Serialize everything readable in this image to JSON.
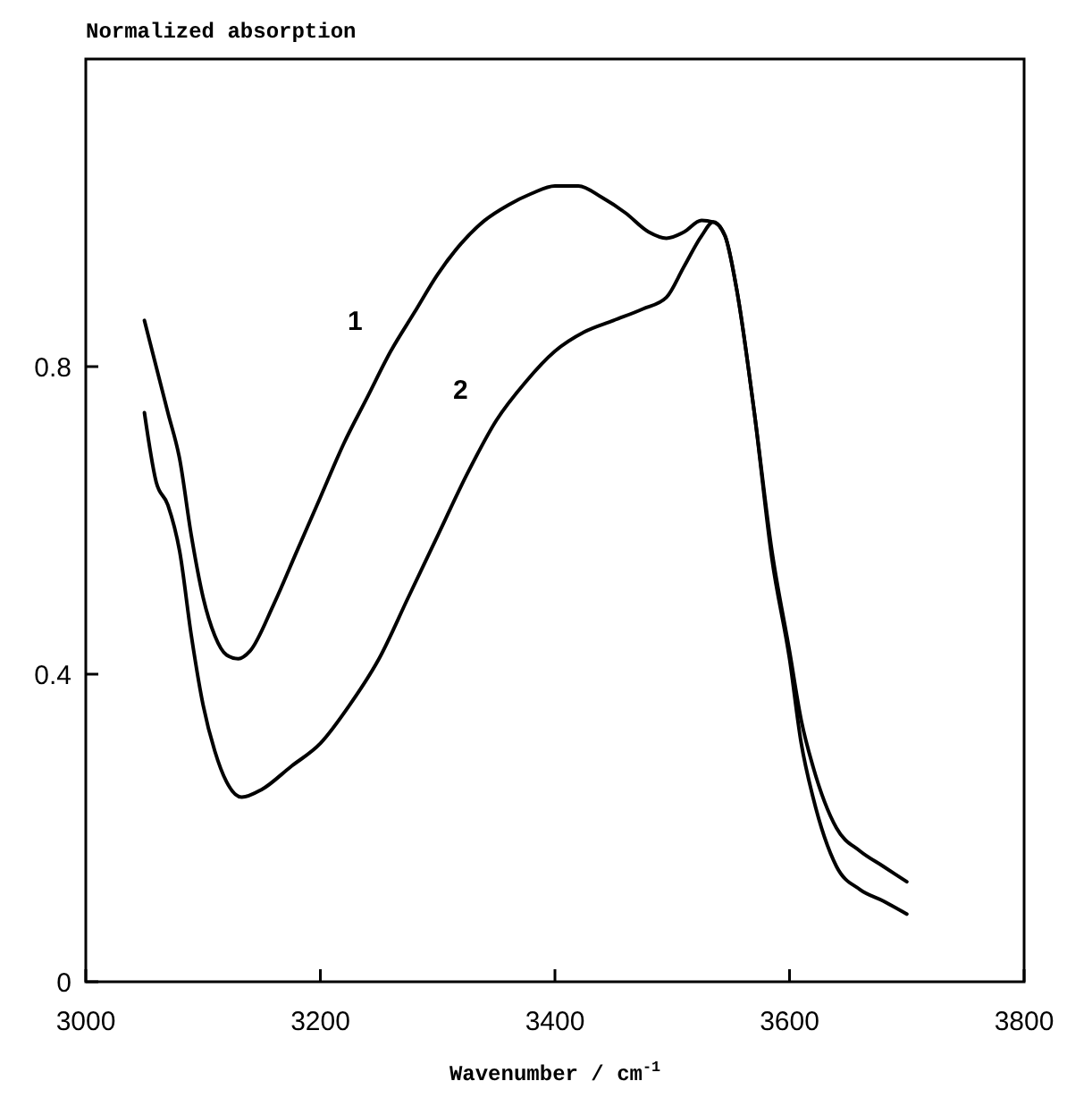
{
  "chart_data": {
    "type": "line",
    "ylabel": "Normalized absorption",
    "xlabel": "Wavenumber / cm$^{-1}$",
    "xlim": [
      3000,
      3800
    ],
    "xticks": [
      3000,
      3200,
      3400,
      3600,
      3800
    ],
    "ylim": [
      0,
      1.2
    ],
    "yticks": [
      0,
      0.4,
      0.8
    ],
    "grid": false,
    "marker": "none",
    "line_style": "solid",
    "series": [
      {
        "name": "1",
        "color": "#000000",
        "x": [
          3050,
          3060,
          3070,
          3080,
          3090,
          3100,
          3110,
          3120,
          3130,
          3140,
          3160,
          3180,
          3200,
          3220,
          3240,
          3260,
          3280,
          3300,
          3320,
          3340,
          3360,
          3380,
          3400,
          3420,
          3440,
          3460,
          3480,
          3495,
          3510,
          3525,
          3535,
          3545,
          3555,
          3570,
          3585,
          3600,
          3610,
          3620,
          3640,
          3660,
          3680,
          3700
        ],
        "values": [
          0.86,
          0.8,
          0.74,
          0.68,
          0.58,
          0.5,
          0.45,
          0.425,
          0.42,
          0.43,
          0.49,
          0.56,
          0.63,
          0.7,
          0.76,
          0.82,
          0.87,
          0.92,
          0.96,
          0.99,
          1.01,
          1.025,
          1.035,
          1.035,
          1.02,
          1.0,
          0.975,
          0.967,
          0.975,
          0.99,
          0.988,
          0.97,
          0.9,
          0.74,
          0.56,
          0.43,
          0.34,
          0.28,
          0.2,
          0.17,
          0.15,
          0.13
        ]
      },
      {
        "name": "2",
        "color": "#000000",
        "x": [
          3050,
          3060,
          3070,
          3080,
          3090,
          3100,
          3110,
          3120,
          3133,
          3150,
          3175,
          3200,
          3225,
          3250,
          3275,
          3300,
          3325,
          3350,
          3375,
          3400,
          3425,
          3450,
          3475,
          3495,
          3510,
          3525,
          3535,
          3545,
          3555,
          3570,
          3585,
          3600,
          3610,
          3620,
          3640,
          3660,
          3680,
          3700
        ],
        "values": [
          0.74,
          0.65,
          0.62,
          0.56,
          0.45,
          0.36,
          0.3,
          0.26,
          0.24,
          0.25,
          0.28,
          0.31,
          0.36,
          0.42,
          0.5,
          0.58,
          0.66,
          0.73,
          0.78,
          0.82,
          0.845,
          0.86,
          0.875,
          0.89,
          0.93,
          0.97,
          0.988,
          0.97,
          0.9,
          0.74,
          0.55,
          0.42,
          0.31,
          0.24,
          0.15,
          0.12,
          0.105,
          0.088
        ]
      }
    ]
  }
}
